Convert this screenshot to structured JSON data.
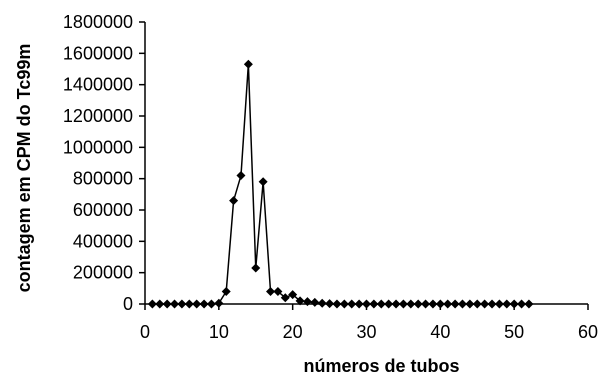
{
  "chart_data": {
    "type": "line",
    "title": "",
    "xlabel": "números de tubos",
    "ylabel": "contagem em CPM do Tc99m",
    "xlim": [
      0,
      60
    ],
    "ylim": [
      0,
      1800000
    ],
    "xticks": [
      0,
      10,
      20,
      30,
      40,
      50,
      60
    ],
    "yticks": [
      0,
      200000,
      400000,
      600000,
      800000,
      1000000,
      1200000,
      1400000,
      1600000,
      1800000
    ],
    "xtick_labels": [
      "0",
      "10",
      "20",
      "30",
      "40",
      "50",
      "60"
    ],
    "ytick_labels": [
      "0",
      "200000",
      "400000",
      "600000",
      "800000",
      "1000000",
      "1200000",
      "1400000",
      "1600000",
      "1800000"
    ],
    "grid": false,
    "legend": "none",
    "marker": "diamond",
    "colors": {
      "line": "#000000",
      "marker": "#000000",
      "axis": "#000000"
    },
    "series": [
      {
        "x": [
          1,
          2,
          3,
          4,
          5,
          6,
          7,
          8,
          9,
          10,
          11,
          12,
          13,
          14,
          15,
          16,
          17,
          18,
          19,
          20,
          21,
          22,
          23,
          24,
          25,
          26,
          27,
          28,
          29,
          30,
          31,
          32,
          33,
          34,
          35,
          36,
          37,
          38,
          39,
          40,
          41,
          42,
          43,
          44,
          45,
          46,
          47,
          48,
          49,
          50,
          51,
          52
        ],
        "values": [
          0,
          0,
          0,
          0,
          0,
          0,
          0,
          0,
          0,
          5000,
          80000,
          660000,
          820000,
          1530000,
          230000,
          780000,
          80000,
          80000,
          40000,
          60000,
          20000,
          15000,
          10000,
          5000,
          2000,
          0,
          0,
          0,
          0,
          0,
          0,
          0,
          0,
          0,
          0,
          0,
          0,
          0,
          0,
          0,
          0,
          0,
          0,
          0,
          0,
          0,
          0,
          0,
          0,
          0,
          0,
          0
        ]
      }
    ]
  }
}
